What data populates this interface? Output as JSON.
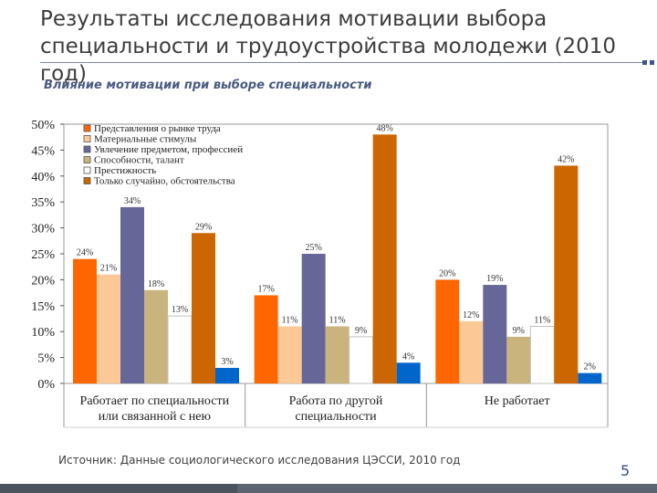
{
  "slide": {
    "title": "Результаты исследования мотивации выбора специальности и трудоустройства молодежи (2010 год)",
    "subtitle": "Влияние мотивации при выборе специальности",
    "source": "Источник: Данные социологического исследования ЦЭССИ, 2010 год",
    "page_number": "5"
  },
  "chart_data": {
    "type": "bar",
    "title": "Влияние мотивации при выборе специальности",
    "xlabel": "",
    "ylabel": "",
    "ylim": [
      0,
      50
    ],
    "yticks": [
      "0%",
      "5%",
      "10%",
      "15%",
      "20%",
      "25%",
      "30%",
      "35%",
      "40%",
      "45%",
      "50%"
    ],
    "ytick_values": [
      0,
      5,
      10,
      15,
      20,
      25,
      30,
      35,
      40,
      45,
      50
    ],
    "categories": [
      [
        "Работает по специальности",
        "или связанной с нею"
      ],
      [
        "Работа по другой",
        "специальности"
      ],
      [
        "Не работает"
      ]
    ],
    "legend_position": "top-left",
    "series": [
      {
        "name": "Представления о рынке труда",
        "color": "#ff6600",
        "values": [
          24,
          17,
          20
        ],
        "labels": [
          "24%",
          "17%",
          "20%"
        ]
      },
      {
        "name": "Материальные стимулы",
        "color": "#fcc896",
        "values": [
          21,
          11,
          12
        ],
        "labels": [
          "21%",
          "11%",
          "12%"
        ]
      },
      {
        "name": "Увлечение предметом, профессией",
        "color": "#666699",
        "values": [
          34,
          25,
          19
        ],
        "labels": [
          "34%",
          "25%",
          "19%"
        ]
      },
      {
        "name": "Способности, талант",
        "color": "#c8b47c",
        "values": [
          18,
          11,
          9
        ],
        "labels": [
          "18%",
          "11%",
          "9%"
        ]
      },
      {
        "name": "Престижность",
        "color": "#ffffff",
        "values": [
          13,
          9,
          11
        ],
        "labels": [
          "13%",
          "9%",
          "11%"
        ]
      },
      {
        "name": "Только случайно, обстоятельства",
        "color": "#cc6600",
        "values": [
          29,
          48,
          42
        ],
        "labels": [
          "29%",
          "48%",
          "42%"
        ]
      },
      {
        "name": "",
        "color": "#0066cc",
        "values": [
          3,
          4,
          2
        ],
        "labels": [
          "3%",
          "4%",
          "2%"
        ]
      }
    ]
  }
}
